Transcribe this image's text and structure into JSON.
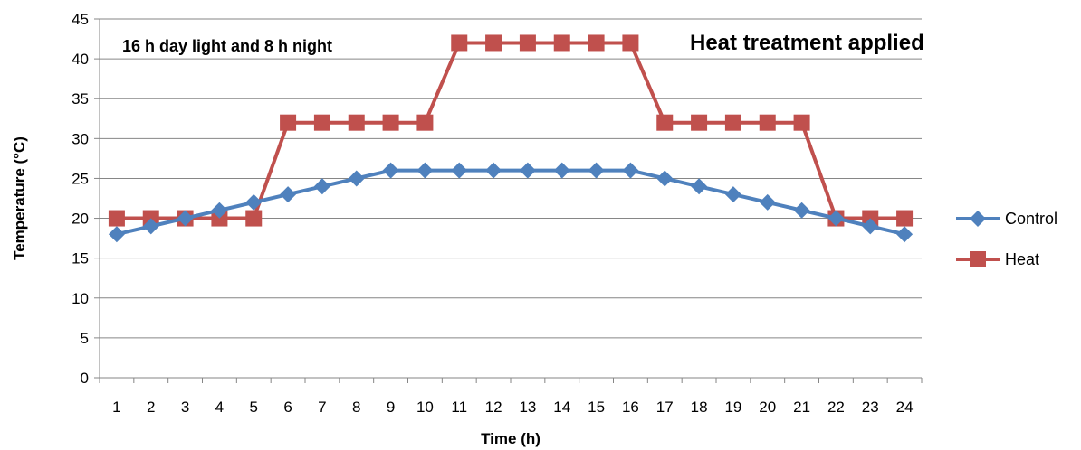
{
  "chart_data": {
    "type": "line",
    "x": [
      1,
      2,
      3,
      4,
      5,
      6,
      7,
      8,
      9,
      10,
      11,
      12,
      13,
      14,
      15,
      16,
      17,
      18,
      19,
      20,
      21,
      22,
      23,
      24
    ],
    "series": [
      {
        "name": "Control",
        "color": "#4F81BD",
        "marker": "diamond",
        "values": [
          18,
          19,
          20,
          21,
          22,
          23,
          24,
          25,
          26,
          26,
          26,
          26,
          26,
          26,
          26,
          26,
          25,
          24,
          23,
          22,
          21,
          20,
          19,
          18
        ]
      },
      {
        "name": "Heat",
        "color": "#C0504D",
        "marker": "square",
        "values": [
          20,
          20,
          20,
          20,
          20,
          32,
          32,
          32,
          32,
          32,
          42,
          42,
          42,
          42,
          42,
          42,
          32,
          32,
          32,
          32,
          32,
          20,
          20,
          20
        ]
      }
    ],
    "xlabel": "Time (h)",
    "ylabel": "Temperature (°C)",
    "ylim": [
      0,
      45
    ],
    "yticks": [
      0,
      5,
      10,
      15,
      20,
      25,
      30,
      35,
      40,
      45
    ],
    "grid": "horizontal",
    "legend_position": "right",
    "annotations": {
      "day_night": "16 h day light and 8 h night",
      "treatment": "Heat treatment applied"
    }
  }
}
